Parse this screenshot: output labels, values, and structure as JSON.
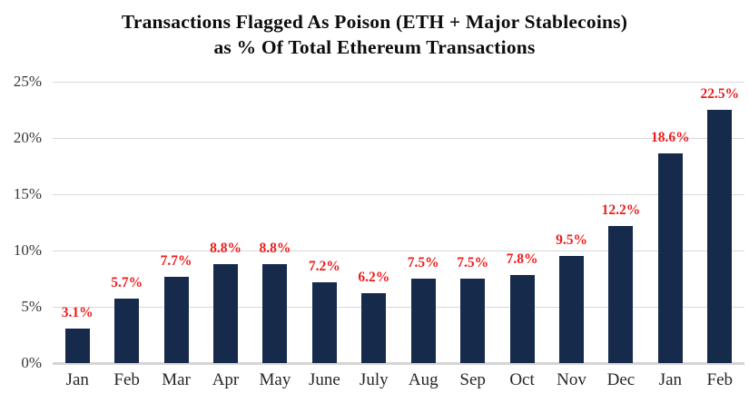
{
  "chart": {
    "title_line1": "Transactions Flagged As Poison (ETH + Major Stablecoins)",
    "title_line2": "as % Of Total Ethereum Transactions"
  },
  "chart_data": {
    "type": "bar",
    "title": "Transactions Flagged As Poison (ETH + Major Stablecoins) as % Of Total Ethereum Transactions",
    "categories": [
      "Jan",
      "Feb",
      "Mar",
      "Apr",
      "May",
      "June",
      "July",
      "Aug",
      "Sep",
      "Oct",
      "Nov",
      "Dec",
      "Jan",
      "Feb"
    ],
    "values": [
      3.1,
      5.7,
      7.7,
      8.8,
      8.8,
      7.2,
      6.2,
      7.5,
      7.5,
      7.8,
      9.5,
      12.2,
      18.6,
      22.5
    ],
    "data_labels": [
      "3.1%",
      "5.7%",
      "7.7%",
      "8.8%",
      "8.8%",
      "7.2%",
      "6.2%",
      "7.5%",
      "7.5%",
      "7.8%",
      "9.5%",
      "12.2%",
      "18.6%",
      "22.5%"
    ],
    "xlabel": "",
    "ylabel": "",
    "ylim": [
      0,
      25
    ],
    "y_ticks": [
      0,
      5,
      10,
      15,
      20,
      25
    ],
    "y_tick_labels": [
      "0%",
      "5%",
      "10%",
      "15%",
      "20%",
      "25%"
    ],
    "grid": true,
    "legend": false,
    "bar_color": "#162B4C",
    "data_label_color": "#EE1C1C",
    "gridline_color": "#d9d9d9"
  }
}
